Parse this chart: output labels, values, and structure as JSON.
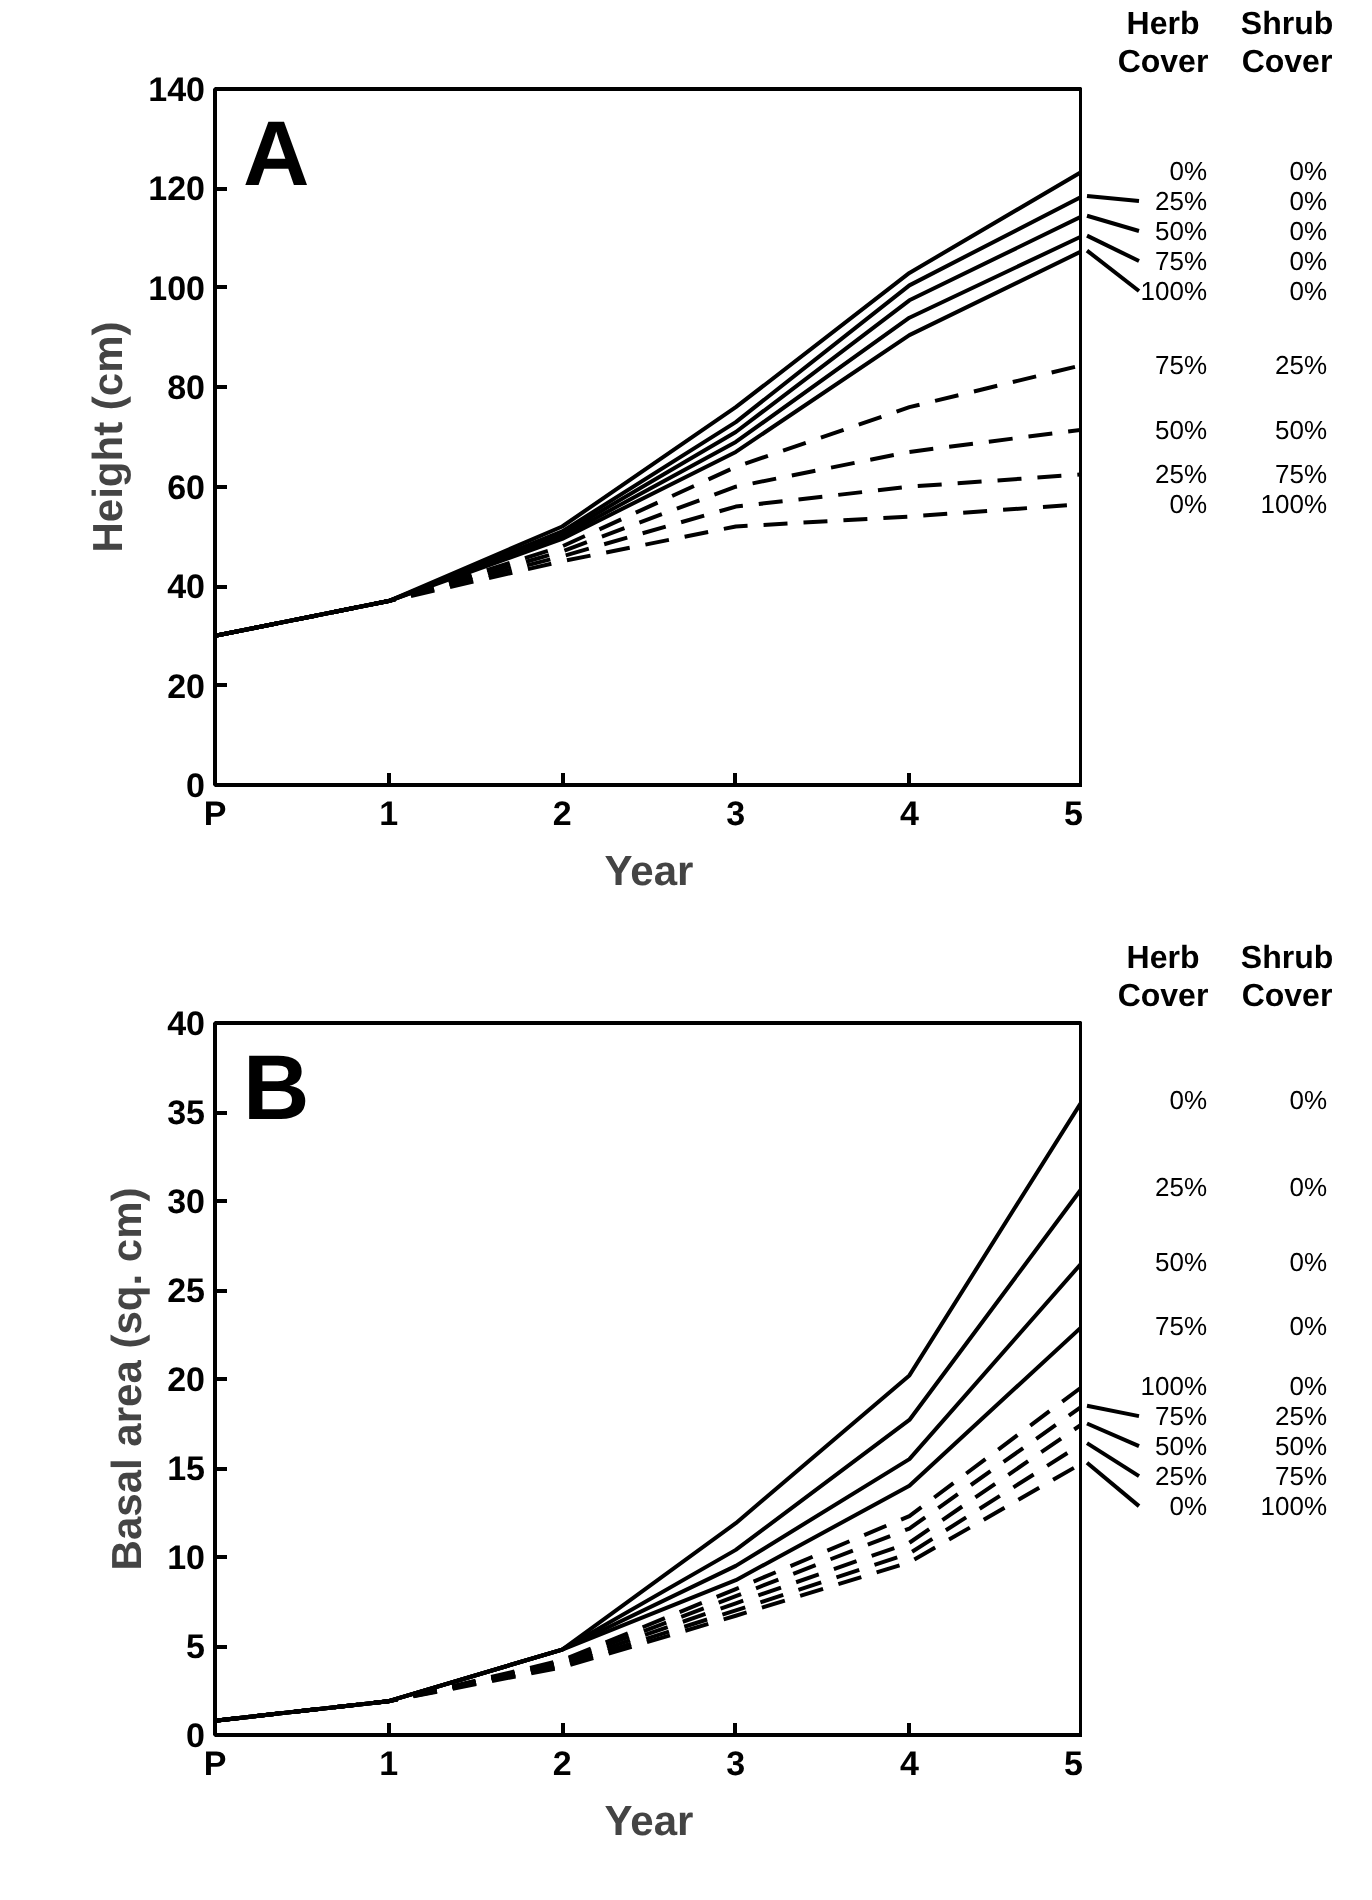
{
  "chart_data": [
    {
      "type": "line",
      "xlabel": "Year",
      "ylabel": "Height (cm)",
      "legend_title": "Herb Cover Shrub Cover",
      "annotations": [
        "A"
      ],
      "categories": [
        "P",
        "1",
        "2",
        "3",
        "4",
        "5"
      ],
      "ylim": [
        0,
        140
      ],
      "yticks": [
        0,
        20,
        40,
        60,
        80,
        100,
        120,
        140
      ],
      "grid": false,
      "marker": "none",
      "series": [
        {
          "name": "0% 0%",
          "color": "#000000",
          "line_style": "solid",
          "values": [
            30,
            37,
            52,
            76,
            103,
            123.5
          ]
        },
        {
          "name": "25% 0%",
          "color": "#000000",
          "line_style": "solid",
          "values": [
            30,
            37,
            51,
            73,
            100.5,
            118.5
          ]
        },
        {
          "name": "50% 0%",
          "color": "#000000",
          "line_style": "solid",
          "values": [
            30,
            37,
            50.5,
            71,
            97.5,
            114.5
          ]
        },
        {
          "name": "75% 0%",
          "color": "#000000",
          "line_style": "solid",
          "values": [
            30,
            37,
            50,
            69,
            94,
            110.5
          ]
        },
        {
          "name": "100% 0%",
          "color": "#000000",
          "line_style": "solid",
          "values": [
            30,
            37,
            49.5,
            67,
            90.5,
            107.5
          ]
        },
        {
          "name": "75% 25%",
          "color": "#000000",
          "line_style": "dashed",
          "values": [
            30,
            37,
            48,
            64,
            76,
            84.5
          ]
        },
        {
          "name": "50% 50%",
          "color": "#000000",
          "line_style": "dashed",
          "values": [
            30,
            37,
            47,
            60,
            67,
            71.5
          ]
        },
        {
          "name": "25% 75%",
          "color": "#000000",
          "line_style": "dashed",
          "values": [
            30,
            37,
            46,
            56,
            60,
            62.5
          ]
        },
        {
          "name": "0% 100%",
          "color": "#000000",
          "line_style": "dashed",
          "values": [
            30,
            37,
            45,
            52,
            54,
            56.5
          ]
        }
      ]
    },
    {
      "type": "line",
      "xlabel": "Year",
      "ylabel": "Basal area (sq. cm)",
      "legend_title": "Herb Cover Shrub Cover",
      "annotations": [
        "B"
      ],
      "categories": [
        "P",
        "1",
        "2",
        "3",
        "4",
        "5"
      ],
      "ylim": [
        0,
        40
      ],
      "yticks": [
        0,
        5,
        10,
        15,
        20,
        25,
        30,
        35,
        40
      ],
      "grid": false,
      "marker": "none",
      "series": [
        {
          "name": "0% 0%",
          "color": "#000000",
          "line_style": "solid",
          "values": [
            0.8,
            1.9,
            4.8,
            11.9,
            20.2,
            35.7
          ]
        },
        {
          "name": "25% 0%",
          "color": "#000000",
          "line_style": "solid",
          "values": [
            0.8,
            1.9,
            4.8,
            10.4,
            17.7,
            30.8
          ]
        },
        {
          "name": "50% 0%",
          "color": "#000000",
          "line_style": "solid",
          "values": [
            0.8,
            1.9,
            4.8,
            9.5,
            15.5,
            26.6
          ]
        },
        {
          "name": "75% 0%",
          "color": "#000000",
          "line_style": "solid",
          "values": [
            0.8,
            1.9,
            4.8,
            8.7,
            14.0,
            23.0
          ]
        },
        {
          "name": "100% 0%",
          "color": "#000000",
          "line_style": "dashed",
          "values": [
            0.8,
            1.9,
            4.2,
            8.2,
            12.3,
            19.6
          ]
        },
        {
          "name": "75% 25%",
          "color": "#000000",
          "line_style": "dashed",
          "values": [
            0.8,
            1.9,
            4.1,
            7.8,
            11.6,
            18.5
          ]
        },
        {
          "name": "50% 50%",
          "color": "#000000",
          "line_style": "dashed",
          "values": [
            0.8,
            1.9,
            4.0,
            7.4,
            10.8,
            17.5
          ]
        },
        {
          "name": "25% 75%",
          "color": "#000000",
          "line_style": "dashed",
          "values": [
            0.8,
            1.9,
            3.9,
            7.0,
            10.2,
            16.4
          ]
        },
        {
          "name": "0% 100%",
          "color": "#000000",
          "line_style": "dashed",
          "values": [
            0.8,
            1.9,
            3.8,
            6.7,
            9.7,
            15.3
          ]
        }
      ]
    }
  ]
}
